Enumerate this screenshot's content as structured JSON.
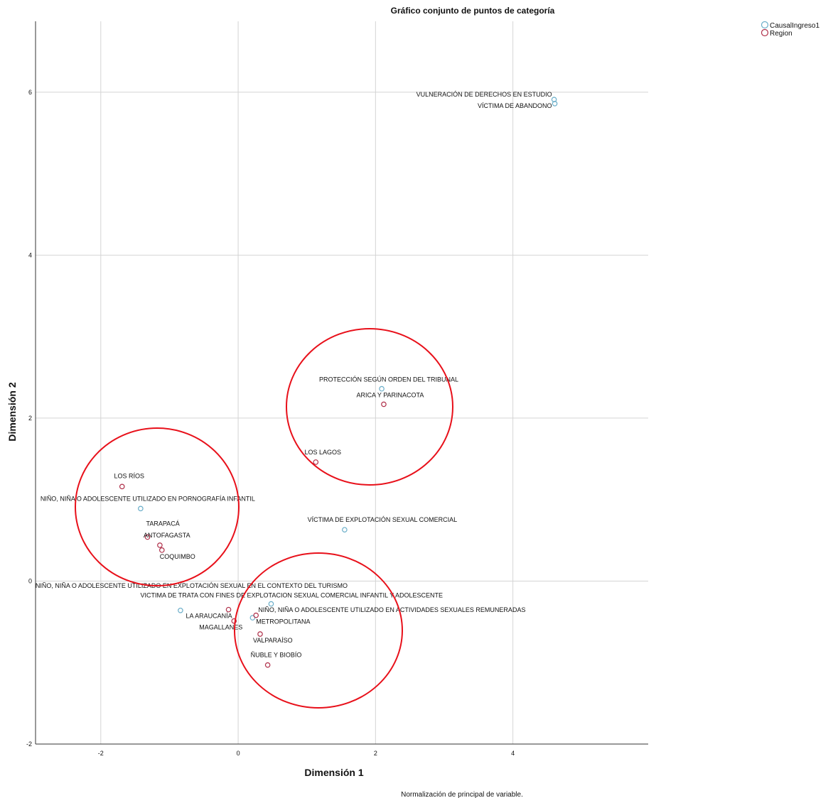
{
  "chart_data": {
    "type": "scatter",
    "title": "Gráfico conjunto de puntos de categoría",
    "x_label": "Dimensión 1",
    "y_label": "Dimensión 2",
    "note": "Normalización de principal de variable.",
    "xlim": [
      -2.95,
      5.97
    ],
    "ylim": [
      -2,
      6.87
    ],
    "xticks": [
      -2,
      0,
      2,
      4
    ],
    "yticks": [
      -2,
      0,
      2,
      4,
      6
    ],
    "grid": true,
    "legend": "top-right",
    "series": [
      {
        "name": "CausalIngreso1",
        "color": "#6aaec9",
        "labels": [
          "VULNERACIÓN DE DERECHOS EN ESTUDIO",
          "VÍCTIMA DE ABANDONO",
          "PROTECCIÓN SEGÚN ORDEN DEL TRIBUNAL",
          "VÍCTIMA DE EXPLOTACIÓN SEXUAL COMERCIAL",
          "NIÑO, NIÑA O ADOLESCENTE UTILIZADO EN PORNOGRAFÍA INFANTIL",
          "NIÑO, NIÑA O ADOLESCENTE UTILIZADO EN EXPLOTACIÓN SEXUAL EN EL CONTEXTO DEL TURISMO",
          "VICTIMA DE TRATA CON FINES DE EXPLOTACION SEXUAL COMERCIAL INFANTIL Y ADOLESCENTE",
          "NIÑO, NIÑA O ADOLESCENTE UTILIZADO EN ACTIVIDADES SEXUALES REMUNERADAS"
        ],
        "x": [
          4.6,
          4.61,
          2.09,
          1.55,
          -1.42,
          -0.84,
          0.48,
          0.21
        ],
        "y": [
          5.91,
          5.86,
          2.36,
          0.63,
          0.89,
          -0.36,
          -0.28,
          -0.45
        ]
      },
      {
        "name": "Region",
        "color": "#b0304a",
        "labels": [
          "ARICA Y PARINACOTA",
          "LOS LAGOS",
          "LOS RÍOS",
          "TARAPACÁ",
          "ANTOFAGASTA",
          "COQUIMBO",
          "LA ARAUCANÍA",
          "MAGALLANES",
          "METROPOLITANA",
          "VALPARAÍSO",
          "ÑUBLE Y BIOBÍO"
        ],
        "x": [
          2.12,
          1.13,
          -1.69,
          -1.32,
          -1.14,
          -1.11,
          -0.14,
          -0.06,
          0.26,
          0.32,
          0.43
        ],
        "y": [
          2.17,
          1.46,
          1.16,
          0.54,
          0.44,
          0.38,
          -0.35,
          -0.49,
          -0.42,
          -0.65,
          -1.03
        ]
      }
    ]
  }
}
